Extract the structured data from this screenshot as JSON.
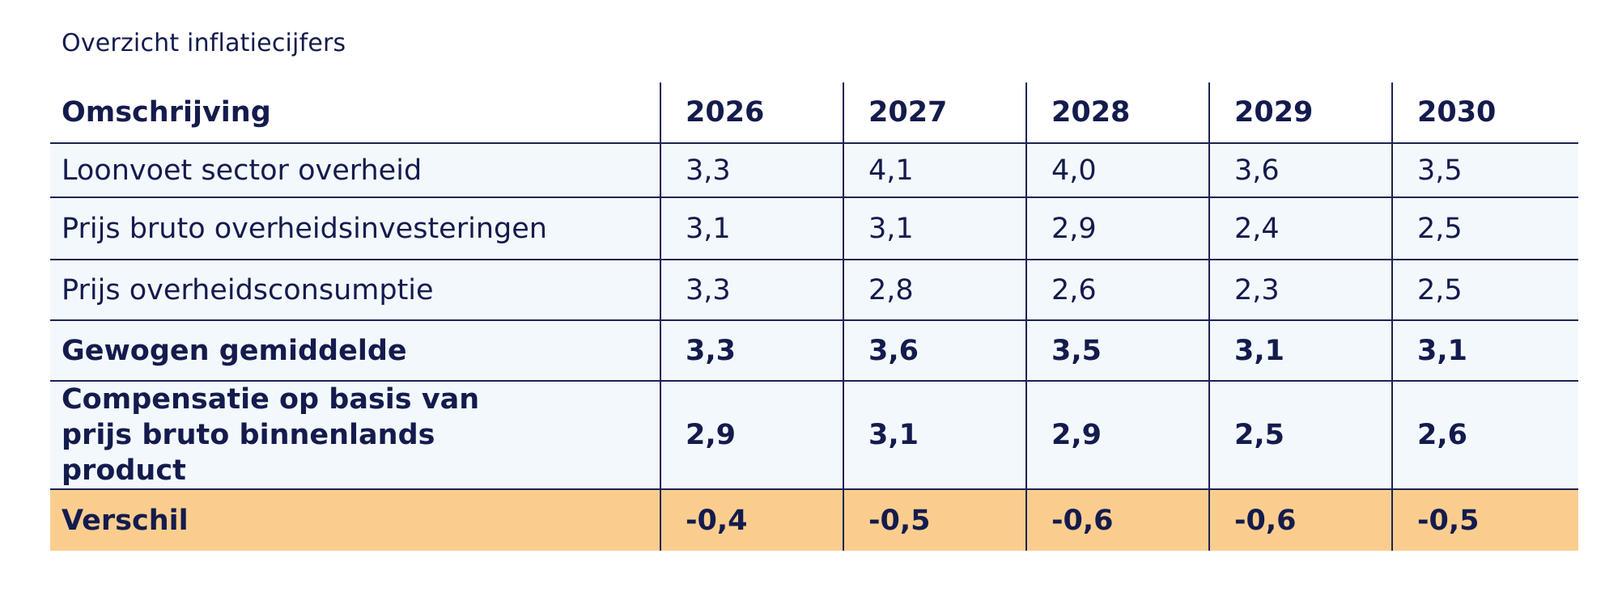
{
  "caption": "Overzicht inflatiecijfers",
  "table": {
    "header": {
      "description": "Omschrijving",
      "years": [
        "2026",
        "2027",
        "2028",
        "2029",
        "2030"
      ]
    },
    "rows": [
      {
        "label": "Loonvoet sector overheid",
        "values": [
          "3,3",
          "4,1",
          "4,0",
          "3,6",
          "3,5"
        ]
      },
      {
        "label": "Prijs bruto overheidsinvesteringen",
        "values": [
          "3,1",
          "3,1",
          "2,9",
          "2,4",
          "2,5"
        ]
      },
      {
        "label": "Prijs overheidsconsumptie",
        "values": [
          "3,3",
          "2,8",
          "2,6",
          "2,3",
          "2,5"
        ]
      },
      {
        "label": "Gewogen gemiddelde",
        "values": [
          "3,3",
          "3,6",
          "3,5",
          "3,1",
          "3,1"
        ]
      },
      {
        "label": "Compensatie op basis van prijs bruto binnenlands product",
        "values": [
          "2,9",
          "3,1",
          "2,9",
          "2,5",
          "2,6"
        ]
      },
      {
        "label": "Verschil",
        "values": [
          "-0,4",
          "-0,5",
          "-0,6",
          "-0,6",
          "-0,5"
        ]
      }
    ]
  },
  "colors": {
    "text": "#141b4d",
    "row_background": "#f3f8fc",
    "highlight_row": "#facd8f",
    "grid_lines": "#1c2352"
  }
}
